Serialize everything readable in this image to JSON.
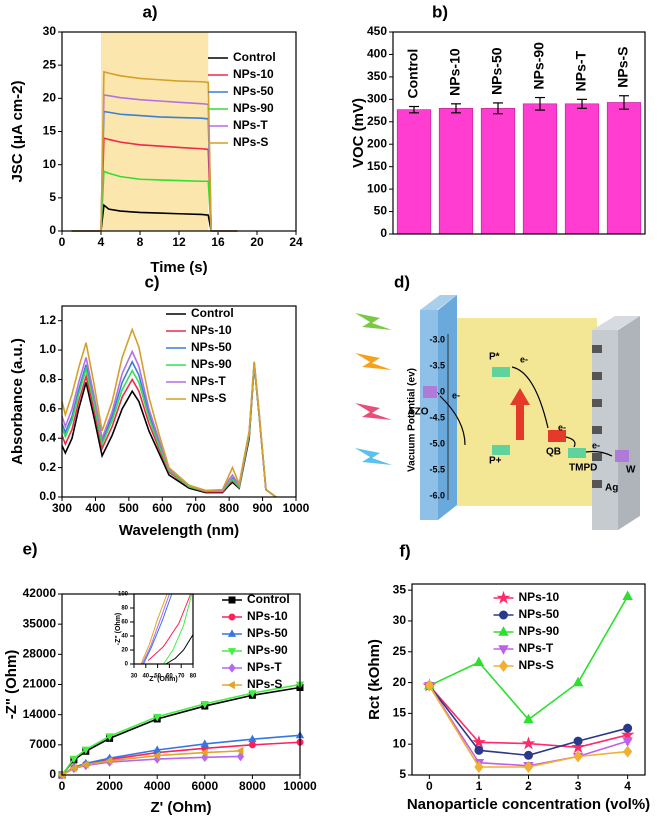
{
  "chart_data": [
    {
      "type": "line",
      "panel_label": "a)",
      "xlabel": "Time (s)",
      "ylabel": "JSC (μA cm-2)",
      "xlim": [
        0,
        24
      ],
      "xticks": [
        0,
        4,
        8,
        12,
        16,
        20,
        24
      ],
      "ylim": [
        0,
        30
      ],
      "yticks": [
        0,
        5,
        10,
        15,
        20,
        25,
        30
      ],
      "highlight": [
        4,
        15
      ],
      "highlight_color": "#fbe6ae",
      "legend": "upper right",
      "x": [
        1,
        4,
        4.3,
        4.8,
        6,
        8,
        10,
        12,
        14.3,
        15,
        15.3,
        18
      ],
      "series": [
        {
          "name": "Control",
          "color": "#000000",
          "values": [
            0,
            0,
            3.9,
            3.3,
            3,
            2.8,
            2.7,
            2.6,
            2.5,
            2.4,
            0,
            0
          ]
        },
        {
          "name": "NPs-10",
          "color": "#f0284a",
          "values": [
            0,
            0,
            14,
            13.8,
            13.4,
            13,
            12.8,
            12.6,
            12.4,
            12.3,
            0,
            0
          ]
        },
        {
          "name": "NPs-50",
          "color": "#3a7fd5",
          "values": [
            0,
            0,
            18,
            17.9,
            17.6,
            17.4,
            17.2,
            17.1,
            17,
            16.9,
            0,
            0
          ]
        },
        {
          "name": "NPs-90",
          "color": "#33dd33",
          "values": [
            0,
            0,
            9,
            8.7,
            8.2,
            7.8,
            7.7,
            7.6,
            7.5,
            7.5,
            0,
            0
          ]
        },
        {
          "name": "NPs-T",
          "color": "#b56fe6",
          "values": [
            0,
            0,
            20.5,
            20.4,
            20.1,
            19.8,
            19.6,
            19.4,
            19.2,
            19.1,
            0,
            0
          ]
        },
        {
          "name": "NPs-S",
          "color": "#d4a02a",
          "values": [
            0,
            0,
            24,
            23.8,
            23.4,
            23,
            22.8,
            22.6,
            22.5,
            22.4,
            0,
            0
          ]
        }
      ]
    },
    {
      "type": "bar",
      "panel_label": "b)",
      "ylabel": "VOC (mV)",
      "color": "#ff3dd0",
      "ylim": [
        0,
        450
      ],
      "yticks": [
        0,
        50,
        100,
        150,
        200,
        250,
        300,
        350,
        400,
        450
      ],
      "categories": [
        "Control",
        "NPs-10",
        "NPs-50",
        "NPs-90",
        "NPs-T",
        "NPs-S"
      ],
      "values": [
        277,
        280,
        280,
        290,
        290,
        293
      ],
      "errors": [
        7,
        10,
        12,
        14,
        10,
        15
      ]
    },
    {
      "type": "line",
      "panel_label": "c)",
      "xlabel": "Wavelength (nm)",
      "ylabel": "Absorbance (a.u.)",
      "xlim": [
        300,
        1000
      ],
      "xticks": [
        300,
        400,
        500,
        600,
        700,
        800,
        900,
        1000
      ],
      "ylim": [
        0,
        1.3
      ],
      "yticks": [
        {
          "value": 0,
          "label": "0.0"
        },
        0.2,
        0.4,
        0.6,
        0.8,
        {
          "value": 1,
          "label": "1.0"
        },
        1.2
      ],
      "legend": "upper right",
      "x": [
        300,
        310,
        330,
        350,
        372,
        395,
        420,
        450,
        480,
        510,
        530,
        560,
        590,
        620,
        680,
        730,
        780,
        800,
        810,
        830,
        860,
        875,
        890,
        910,
        940
      ],
      "series": [
        {
          "name": "Control",
          "color": "#000000",
          "values": [
            0.35,
            0.3,
            0.4,
            0.6,
            0.78,
            0.55,
            0.28,
            0.42,
            0.6,
            0.72,
            0.65,
            0.45,
            0.3,
            0.15,
            0.06,
            0.03,
            0.03,
            0.08,
            0.1,
            0.06,
            0.4,
            0.9,
            0.55,
            0.05,
            0
          ]
        },
        {
          "name": "NPs-10",
          "color": "#f0284a",
          "values": [
            0.42,
            0.36,
            0.46,
            0.65,
            0.82,
            0.6,
            0.33,
            0.48,
            0.68,
            0.8,
            0.72,
            0.5,
            0.33,
            0.17,
            0.07,
            0.035,
            0.035,
            0.09,
            0.11,
            0.065,
            0.42,
            0.91,
            0.55,
            0.05,
            0
          ]
        },
        {
          "name": "NPs-50",
          "color": "#3a7fd5",
          "values": [
            0.5,
            0.44,
            0.55,
            0.73,
            0.9,
            0.66,
            0.38,
            0.55,
            0.78,
            0.92,
            0.83,
            0.57,
            0.37,
            0.18,
            0.075,
            0.04,
            0.04,
            0.1,
            0.13,
            0.07,
            0.43,
            0.91,
            0.56,
            0.05,
            0
          ]
        },
        {
          "name": "NPs-90",
          "color": "#33dd55",
          "values": [
            0.47,
            0.41,
            0.52,
            0.7,
            0.87,
            0.64,
            0.36,
            0.52,
            0.73,
            0.86,
            0.78,
            0.54,
            0.35,
            0.18,
            0.07,
            0.04,
            0.04,
            0.1,
            0.12,
            0.07,
            0.42,
            0.91,
            0.55,
            0.05,
            0
          ]
        },
        {
          "name": "NPs-T",
          "color": "#b56fe6",
          "values": [
            0.55,
            0.48,
            0.6,
            0.78,
            0.95,
            0.7,
            0.4,
            0.58,
            0.84,
            0.99,
            0.89,
            0.6,
            0.39,
            0.19,
            0.08,
            0.04,
            0.045,
            0.12,
            0.15,
            0.08,
            0.44,
            0.92,
            0.56,
            0.05,
            0
          ]
        },
        {
          "name": "NPs-S",
          "color": "#d4a02a",
          "values": [
            0.65,
            0.56,
            0.7,
            0.88,
            1.05,
            0.78,
            0.45,
            0.65,
            0.95,
            1.14,
            1.02,
            0.68,
            0.43,
            0.2,
            0.08,
            0.045,
            0.05,
            0.15,
            0.2,
            0.09,
            0.45,
            0.92,
            0.57,
            0.05,
            0
          ]
        }
      ]
    },
    {
      "type": "line",
      "panel_label": "e)",
      "xlabel": "Z' (Ohm)",
      "ylabel": "-Z\" (Ohm)",
      "xlim": [
        0,
        10000
      ],
      "xticks": [
        0,
        2000,
        4000,
        6000,
        8000,
        10000
      ],
      "ylim": [
        0,
        42000
      ],
      "yticks": [
        0,
        7000,
        14000,
        21000,
        28000,
        35000,
        42000
      ],
      "legend": "upper right",
      "series": [
        {
          "name": "Control",
          "color": "#000000",
          "marker": "square",
          "x": [
            0,
            500,
            1000,
            2000,
            4000,
            6000,
            8000,
            10000
          ],
          "values": [
            0,
            3500,
            5500,
            8500,
            13000,
            16000,
            18500,
            20300
          ]
        },
        {
          "name": "NPs-10",
          "color": "#ff1f5a",
          "marker": "circle",
          "x": [
            0,
            500,
            1000,
            2000,
            4000,
            6000,
            8000,
            10000
          ],
          "values": [
            0,
            1700,
            2500,
            3600,
            5200,
            6200,
            7000,
            7600
          ]
        },
        {
          "name": "NPs-50",
          "color": "#3577e0",
          "marker": "triangle-up",
          "x": [
            0,
            500,
            1000,
            2000,
            4000,
            6000,
            8000,
            10000
          ],
          "values": [
            0,
            1800,
            2700,
            3900,
            5800,
            7200,
            8300,
            9200
          ]
        },
        {
          "name": "NPs-90",
          "color": "#44ee44",
          "marker": "triangle-down",
          "x": [
            0,
            500,
            1000,
            2000,
            4000,
            6000,
            8000,
            10000
          ],
          "values": [
            0,
            3800,
            5900,
            9000,
            13500,
            16500,
            19000,
            21000
          ]
        },
        {
          "name": "NPs-T",
          "color": "#b469f0",
          "marker": "diamond",
          "x": [
            0,
            500,
            1000,
            2000,
            4000,
            6000,
            7500
          ],
          "values": [
            0,
            1500,
            2200,
            3000,
            3700,
            4100,
            4300
          ]
        },
        {
          "name": "NPs-S",
          "color": "#e0a52a",
          "marker": "triangle-left",
          "x": [
            0,
            500,
            1000,
            2000,
            4000,
            6000,
            7500
          ],
          "values": [
            0,
            1600,
            2400,
            3300,
            4500,
            5200,
            5600
          ]
        }
      ]
    },
    {
      "type": "line",
      "xlabel": "Z' (Ohm)",
      "ylabel": "-Z\" (Ohm)",
      "xlim": [
        30,
        80
      ],
      "xticks": [
        30,
        40,
        50,
        60,
        70,
        80
      ],
      "ylim": [
        0,
        100
      ],
      "yticks": [
        0,
        20,
        40,
        60,
        80,
        100
      ],
      "series": [
        {
          "color": "#000000",
          "x": [
            57,
            65,
            72,
            80
          ],
          "values": [
            0,
            8,
            20,
            42
          ]
        },
        {
          "color": "#ff1f5a",
          "x": [
            42,
            55,
            68,
            78
          ],
          "values": [
            5,
            25,
            58,
            100
          ]
        },
        {
          "color": "#3577e0",
          "x": [
            38,
            45,
            54,
            62
          ],
          "values": [
            0,
            25,
            62,
            100
          ]
        },
        {
          "color": "#44ee44",
          "x": [
            55,
            63,
            72,
            79
          ],
          "values": [
            0,
            20,
            55,
            100
          ]
        },
        {
          "color": "#b469f0",
          "x": [
            37,
            44,
            52,
            60
          ],
          "values": [
            0,
            25,
            62,
            100
          ]
        },
        {
          "color": "#e0a52a",
          "x": [
            36,
            43,
            50,
            58
          ],
          "values": [
            0,
            28,
            64,
            100
          ]
        }
      ]
    },
    {
      "type": "line",
      "panel_label": "f)",
      "xlabel": "Nanoparticle concentration (vol%)",
      "ylabel": "Rct (kOhm)",
      "xlim": [
        -0.35,
        4.35
      ],
      "xticks": [
        0,
        1,
        2,
        3,
        4
      ],
      "ylim": [
        5,
        36
      ],
      "yticks": [
        5,
        10,
        15,
        20,
        25,
        30,
        35
      ],
      "legend": "upper center",
      "x": [
        0,
        1,
        2,
        3,
        4
      ],
      "series": [
        {
          "name": "NPs-10",
          "color": "#ff2a6a",
          "marker": "star",
          "values": [
            19.5,
            10.3,
            10.1,
            9.5,
            11.5
          ]
        },
        {
          "name": "NPs-50",
          "color": "#2a3a8a",
          "marker": "circle",
          "values": [
            19.5,
            9,
            8.2,
            10.5,
            12.6
          ]
        },
        {
          "name": "NPs-90",
          "color": "#2ee02e",
          "marker": "triangle-up",
          "values": [
            19.5,
            23.3,
            14,
            20,
            34
          ]
        },
        {
          "name": "NPs-T",
          "color": "#c060e8",
          "marker": "triangle-down",
          "values": [
            19.5,
            7,
            6.5,
            8,
            10.5
          ]
        },
        {
          "name": "NPs-S",
          "color": "#f0b030",
          "marker": "diamond",
          "values": [
            19.5,
            6.3,
            6.3,
            8,
            8.8
          ]
        }
      ]
    }
  ],
  "diagram": {
    "label": "d)",
    "axis_title": "Vacuum Potential (ev)",
    "axis_ticks": [
      "-3.0",
      "-3.5",
      "-4.0",
      "-4.5",
      "-5.0",
      "-5.5",
      "-6.0"
    ],
    "azo": "AZO",
    "p_star": "P*",
    "p_plus": "P+",
    "qb": "QB",
    "tmpd": "TMPD",
    "w": "W",
    "ag": "Ag",
    "electron": "e-"
  }
}
